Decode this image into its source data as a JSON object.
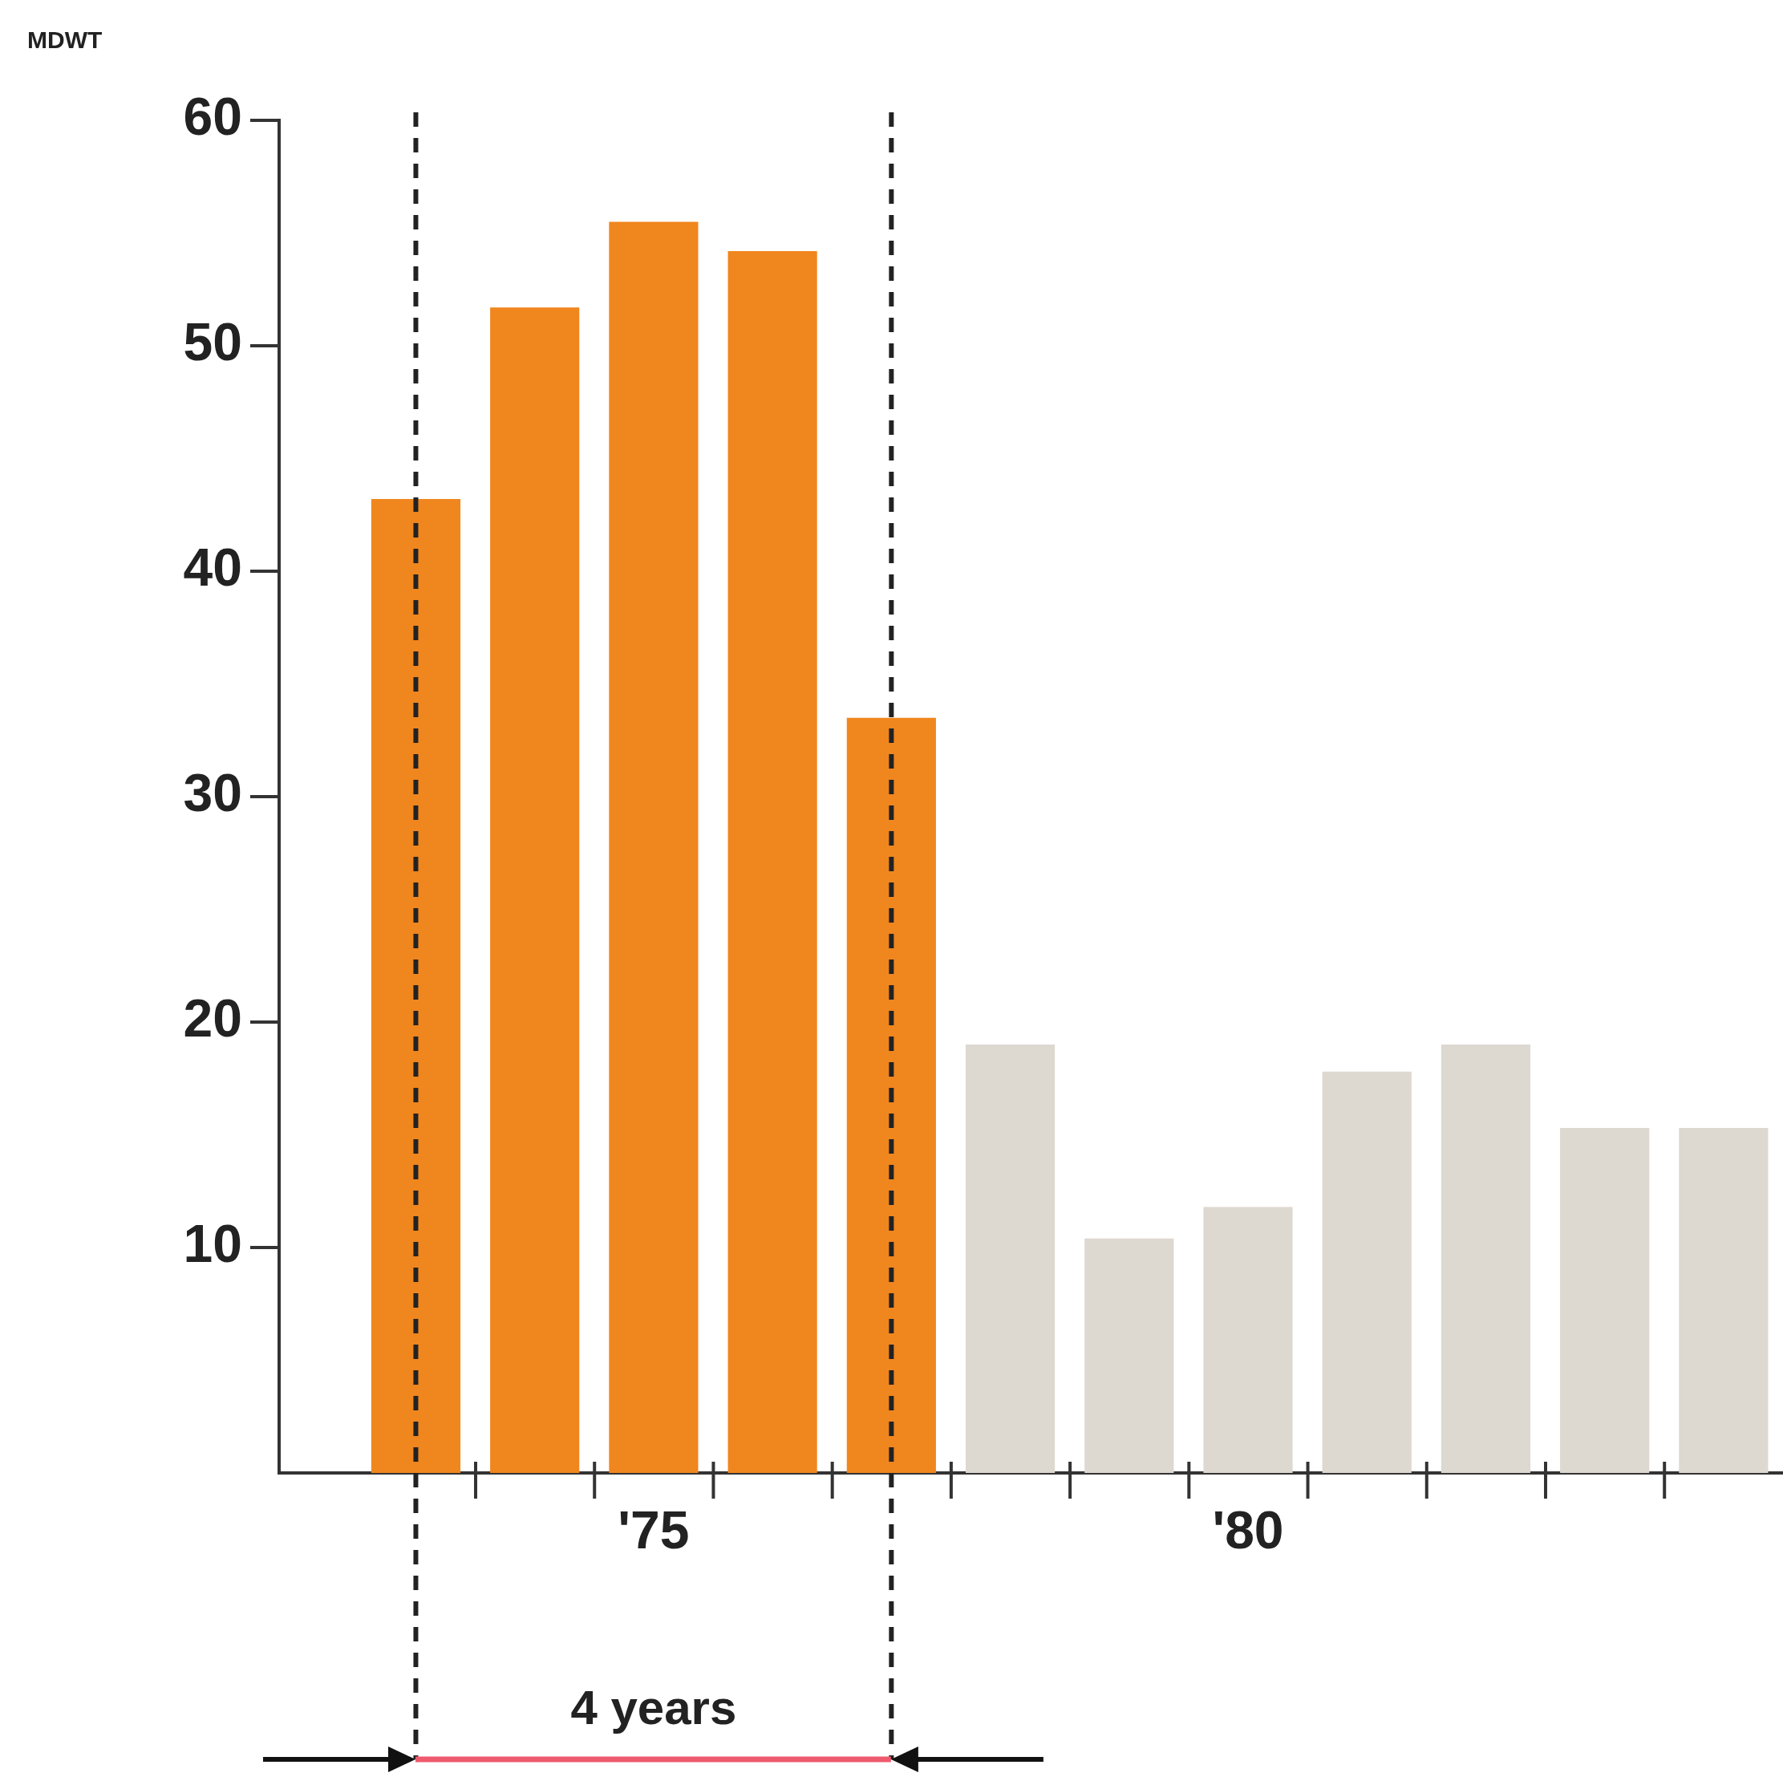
{
  "chart_data": {
    "type": "bar",
    "ylabel": "MDWT",
    "x": [
      1973,
      1974,
      1975,
      1976,
      1977,
      1978,
      1979,
      1980,
      1981,
      1982,
      1983,
      1984
    ],
    "values": [
      43.2,
      51.7,
      55.5,
      54.2,
      33.5,
      19,
      10.4,
      11.8,
      17.8,
      19,
      15.3,
      15.3
    ],
    "colors": [
      "#f0861e",
      "#f0861e",
      "#f0861e",
      "#f0861e",
      "#f0861e",
      "#ddd8d0",
      "#ddd8d0",
      "#ddd8d0",
      "#ddd8d0",
      "#ddd8d0",
      "#ddd8d0",
      "#ddd8d0"
    ],
    "xlim": [
      1971.85,
      1984.5
    ],
    "xticks": [
      {
        "value": 1975,
        "label": "'75"
      },
      {
        "value": 1980,
        "label": "'80"
      }
    ],
    "ylim": [
      0,
      60
    ],
    "yticks": [
      10,
      20,
      30,
      40,
      50,
      60
    ],
    "grid": false,
    "legend": false,
    "ref_lines": [
      {
        "axis": "x",
        "value": 1973,
        "color": "#222222",
        "line_style": "dashed"
      },
      {
        "axis": "x",
        "value": 1977,
        "color": "#222222",
        "line_style": "dashed"
      }
    ],
    "annotations": [
      "4 years"
    ]
  }
}
